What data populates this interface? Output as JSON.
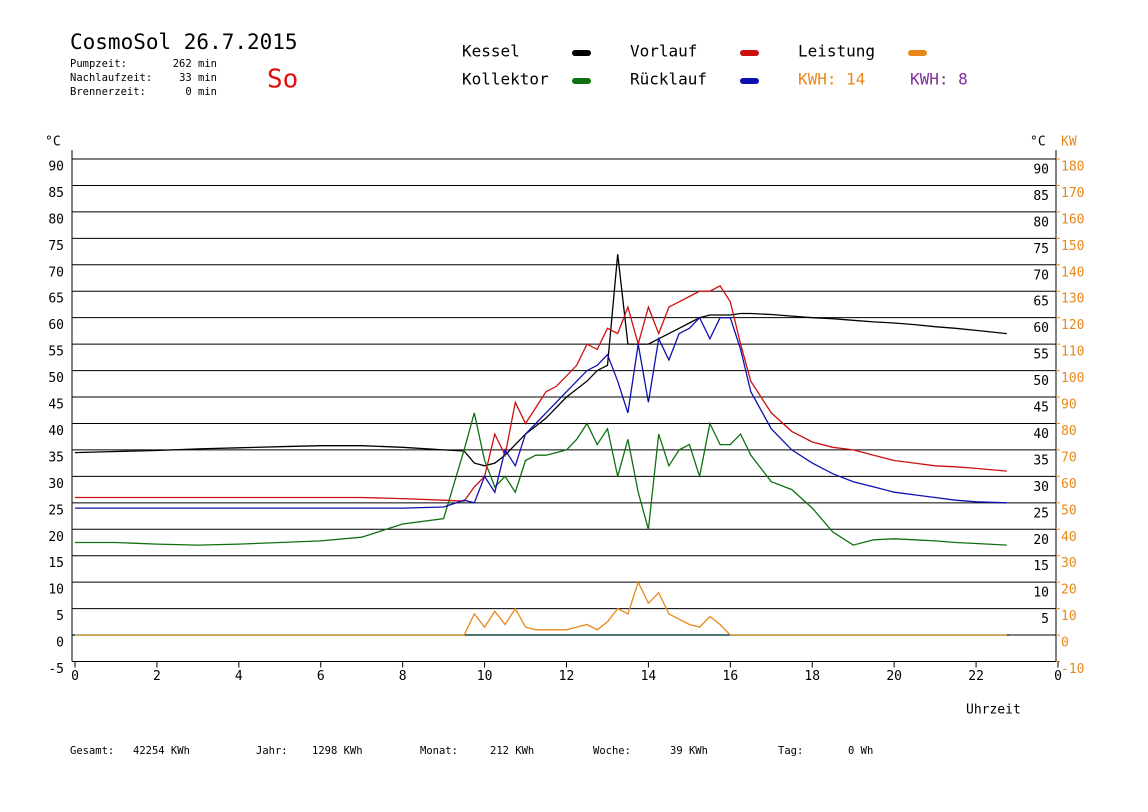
{
  "chart_data": {
    "type": "line",
    "title": "CosmoSol 26.7.2015",
    "day": "So",
    "info": [
      {
        "label": "Pumpzeit:",
        "value": "262 min"
      },
      {
        "label": "Nachlaufzeit:",
        "value": "33 min"
      },
      {
        "label": "Brennerzeit:",
        "value": "0 min"
      }
    ],
    "kwh_labels": [
      {
        "text": "KWH: 14",
        "color": "#e8881a"
      },
      {
        "text": "KWH: 8",
        "color": "#8030a0"
      }
    ],
    "y_unit": "°C",
    "y2_unit": "KW",
    "x_label": "Uhrzeit",
    "x": [
      0,
      1,
      2,
      3,
      4,
      5,
      6,
      7,
      8,
      9,
      9.5,
      9.75,
      10,
      10.25,
      10.5,
      10.75,
      11,
      11.25,
      11.5,
      11.75,
      12,
      12.25,
      12.5,
      12.75,
      13,
      13.25,
      13.5,
      13.75,
      14,
      14.25,
      14.5,
      14.75,
      15,
      15.25,
      15.5,
      15.75,
      16,
      16.25,
      16.5,
      17,
      17.5,
      18,
      18.5,
      19,
      19.5,
      20,
      20.5,
      21,
      21.5,
      22,
      22.75
    ],
    "series": [
      {
        "name": "Kessel",
        "color": "#000000",
        "values": [
          34.5,
          34.7,
          34.9,
          35.2,
          35.4,
          35.6,
          35.8,
          35.8,
          35.5,
          35,
          34.8,
          32.5,
          32,
          32.5,
          34,
          36,
          38,
          39.5,
          41,
          43,
          45,
          46.5,
          48,
          50,
          51,
          72,
          55,
          55,
          55,
          56,
          57,
          58,
          59,
          60,
          60.5,
          60.5,
          60.5,
          60.8,
          60.8,
          60.6,
          60.3,
          60,
          59.8,
          59.5,
          59.2,
          59,
          58.7,
          58.3,
          58,
          57.6,
          57
        ]
      },
      {
        "name": "Kollektor",
        "color": "#107010",
        "values": [
          17.5,
          17.5,
          17.2,
          17,
          17.2,
          17.5,
          17.8,
          18.5,
          21,
          22,
          35,
          42,
          33,
          28,
          30,
          27,
          33,
          34,
          34,
          34.5,
          35,
          37,
          40,
          36,
          39,
          30,
          37,
          27,
          20,
          38,
          32,
          35,
          36,
          30,
          40,
          36,
          36,
          38,
          34,
          29,
          27.5,
          24,
          19.5,
          17,
          18,
          18.2,
          18,
          17.8,
          17.5,
          17.3,
          17
        ]
      },
      {
        "name": "Vorlauf",
        "color": "#cc1010",
        "values": [
          26,
          26,
          26,
          26,
          26,
          26,
          26,
          26,
          25.8,
          25.5,
          25.3,
          28,
          30,
          38,
          34,
          44,
          40,
          43,
          46,
          47,
          49,
          51,
          55,
          54,
          58,
          57,
          62,
          55,
          62,
          57,
          62,
          63,
          64,
          65,
          65,
          66,
          63,
          55,
          48,
          42,
          38.5,
          36.5,
          35.5,
          35,
          34,
          33,
          32.5,
          32,
          31.8,
          31.5,
          31
        ]
      },
      {
        "name": "Rücklauf",
        "color": "#1010b0",
        "values": [
          24,
          24,
          24,
          24,
          24,
          24,
          24,
          24,
          24,
          24.2,
          25.5,
          25,
          30,
          27,
          35,
          32,
          38,
          40,
          42,
          44,
          46,
          48,
          50,
          51,
          53,
          48,
          42,
          55,
          44,
          56,
          52,
          57,
          58,
          60,
          56,
          60,
          60,
          54,
          46,
          39,
          35,
          32.5,
          30.5,
          29,
          28,
          27,
          26.5,
          26,
          25.5,
          25.2,
          25
        ]
      },
      {
        "name": "Leistung",
        "color": "#e8881a",
        "axis": "y2",
        "values": [
          0,
          0,
          0,
          0,
          0,
          0,
          0,
          0,
          0,
          0,
          0,
          8,
          3,
          9,
          4,
          10,
          3,
          2,
          2,
          2,
          2,
          3,
          4,
          2,
          5,
          10,
          8,
          20,
          12,
          16,
          8,
          6,
          4,
          3,
          7,
          4,
          0,
          0,
          0,
          0,
          0,
          0,
          0,
          0,
          0,
          0,
          0,
          0,
          0,
          0,
          0
        ]
      }
    ],
    "xlim": [
      0,
      24
    ],
    "xticks": [
      0,
      2,
      4,
      6,
      8,
      10,
      12,
      14,
      16,
      18,
      20,
      22,
      {
        "value": 24,
        "label": "0"
      }
    ],
    "ylim": [
      -5,
      90
    ],
    "yticks": [
      -5,
      0,
      5,
      10,
      15,
      20,
      25,
      30,
      35,
      40,
      45,
      50,
      55,
      60,
      65,
      70,
      75,
      80,
      85,
      90
    ],
    "yticks_right": [
      5,
      10,
      15,
      20,
      25,
      30,
      35,
      40,
      45,
      50,
      55,
      60,
      65,
      70,
      75,
      80,
      85,
      90
    ],
    "y2lim": [
      -10,
      180
    ],
    "y2ticks": [
      -10,
      0,
      10,
      20,
      30,
      40,
      50,
      60,
      70,
      80,
      90,
      100,
      110,
      120,
      130,
      140,
      150,
      160,
      170,
      180
    ],
    "grid": true,
    "totals": [
      {
        "label": "Gesamt:",
        "value": "42254 KWh"
      },
      {
        "label": "Jahr:",
        "value": "1298 KWh"
      },
      {
        "label": "Monat:",
        "value": "212 KWh"
      },
      {
        "label": "Woche:",
        "value": "39 KWh"
      },
      {
        "label": "Tag:",
        "value": "0 Wh"
      }
    ]
  }
}
